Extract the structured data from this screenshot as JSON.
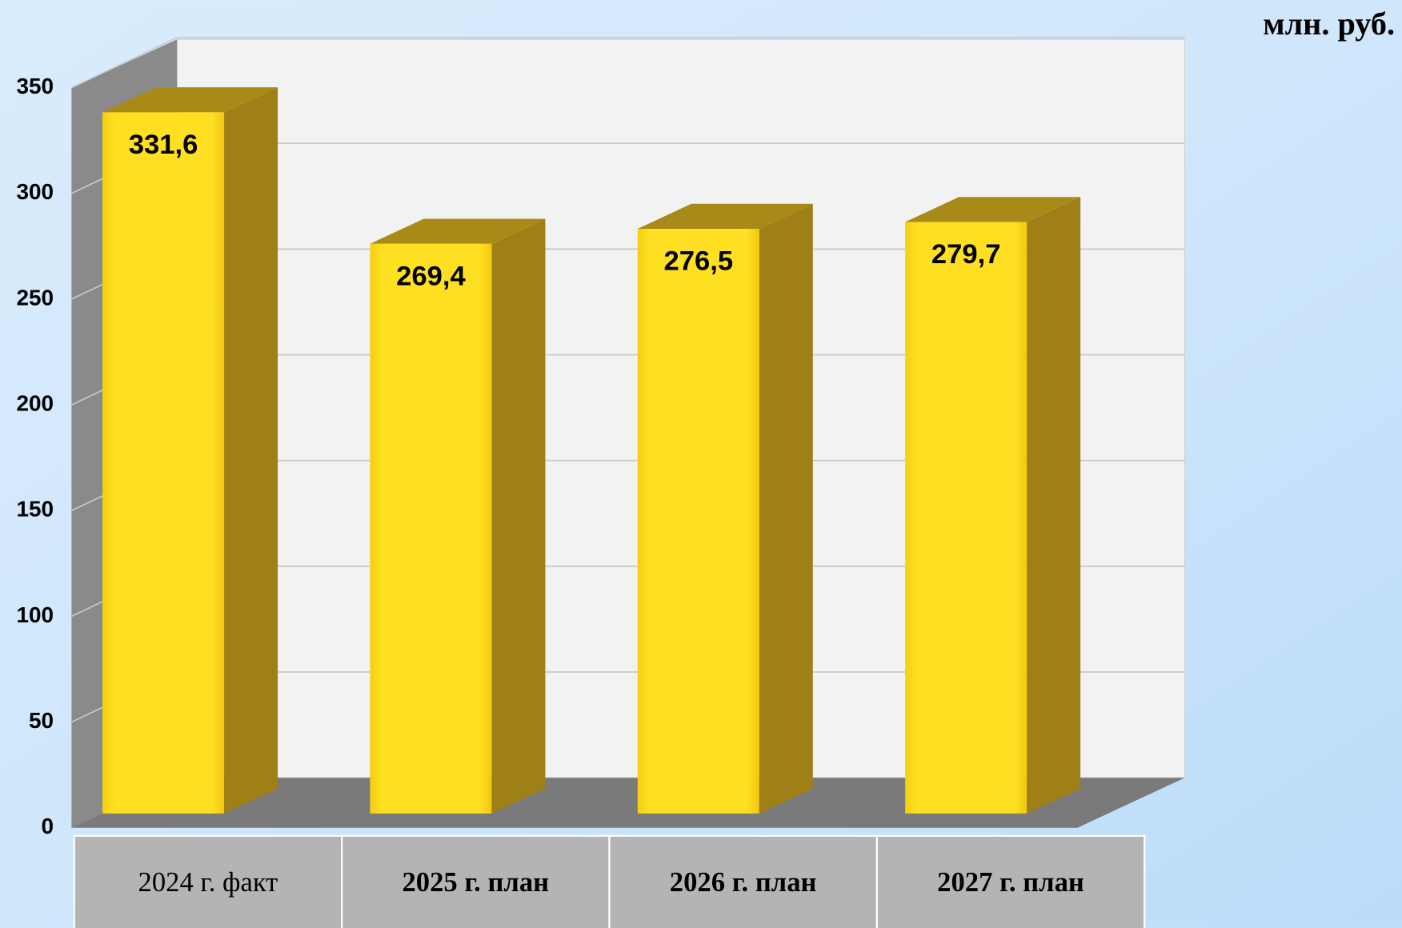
{
  "chart_data": {
    "type": "bar",
    "unit_label": "млн. руб.",
    "categories": [
      "2024 г. факт",
      "2025 г. план",
      "2026 г. план",
      "2027 г. план"
    ],
    "values": [
      331.6,
      269.4,
      276.5,
      279.7
    ],
    "value_labels": [
      "331,6",
      "269,4",
      "276,5",
      "279,7"
    ],
    "color": "#ffdd22",
    "ylim": [
      0,
      350
    ],
    "yticks": [
      0,
      50,
      100,
      150,
      200,
      250,
      300,
      350
    ],
    "grid": true
  }
}
